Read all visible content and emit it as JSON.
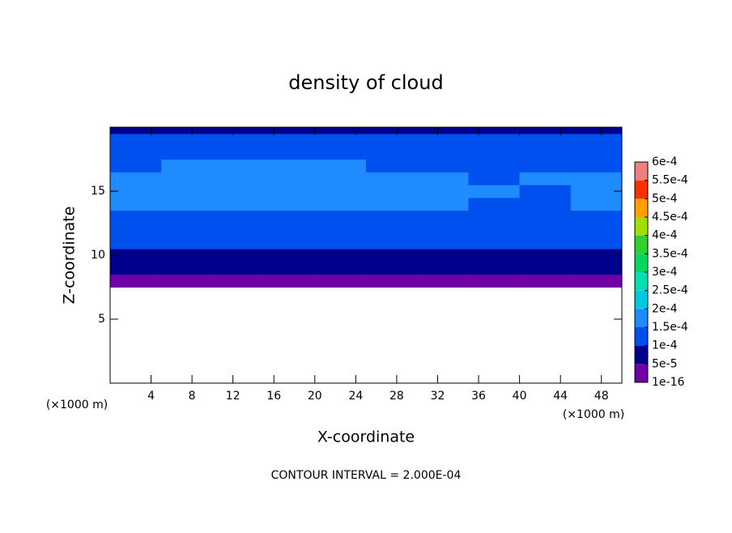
{
  "chart_data": {
    "type": "contour",
    "title": "density of cloud",
    "x_label": "X-coordinate",
    "y_label": "Z-coordinate",
    "x_unit_left": "(×1000 m)",
    "x_unit_right": "(×1000 m)",
    "footer": "CONTOUR INTERVAL = 2.000E-04",
    "xlim": [
      0,
      50
    ],
    "ylim": [
      0,
      20
    ],
    "xticks": [
      4,
      8,
      12,
      16,
      20,
      24,
      28,
      32,
      36,
      40,
      44,
      48
    ],
    "yticks": [
      5,
      10,
      15
    ],
    "x": [
      2.5,
      7.5,
      12.5,
      17.5,
      22.5,
      27.5,
      32.5,
      37.5,
      42.5,
      47.5
    ],
    "y": [
      8,
      9,
      10,
      11,
      12,
      13,
      14,
      15,
      16,
      17,
      18,
      19,
      20
    ],
    "z": [
      [
        2e-05,
        2e-05,
        2e-05,
        2e-05,
        2e-05,
        2e-05,
        2e-05,
        2e-05,
        2e-05,
        2e-05
      ],
      [
        6e-05,
        6e-05,
        6e-05,
        6e-05,
        6e-05,
        6e-05,
        6e-05,
        6e-05,
        6e-05,
        6e-05
      ],
      [
        9e-05,
        9e-05,
        9e-05,
        9e-05,
        9e-05,
        9e-05,
        9e-05,
        9e-05,
        9e-05,
        9e-05
      ],
      [
        0.00011,
        0.00011,
        0.00011,
        0.00011,
        0.00011,
        0.00011,
        0.00011,
        0.00011,
        0.00011,
        0.00011
      ],
      [
        0.00013,
        0.00013,
        0.00013,
        0.00013,
        0.00013,
        0.00013,
        0.00013,
        0.00013,
        0.00012,
        0.00013
      ],
      [
        0.00014,
        0.00014,
        0.00014,
        0.00014,
        0.00014,
        0.00014,
        0.00014,
        0.00013,
        0.00012,
        0.00014
      ],
      [
        0.00015,
        0.00016,
        0.00016,
        0.00016,
        0.00016,
        0.00016,
        0.00016,
        0.00014,
        0.00013,
        0.00015
      ],
      [
        0.00016,
        0.00016,
        0.00016,
        0.00016,
        0.00016,
        0.00016,
        0.00016,
        0.00015,
        0.00013,
        0.00016
      ],
      [
        0.00015,
        0.00016,
        0.00016,
        0.00016,
        0.00016,
        0.00016,
        0.00015,
        0.00012,
        0.00015,
        0.00015
      ],
      [
        0.00014,
        0.00015,
        0.00015,
        0.00015,
        0.00015,
        0.00014,
        0.00013,
        0.00012,
        0.00014,
        0.00014
      ],
      [
        0.00012,
        0.00012,
        0.00012,
        0.00012,
        0.00012,
        0.00012,
        0.00012,
        0.00012,
        0.00012,
        0.00012
      ],
      [
        0.00011,
        0.00011,
        0.00011,
        0.00011,
        0.00011,
        0.00011,
        0.00011,
        0.00011,
        0.00011,
        0.00011
      ],
      [
        9e-05,
        9e-05,
        9e-05,
        9e-05,
        9e-05,
        9e-05,
        9e-05,
        9e-05,
        9e-05,
        9e-05
      ]
    ],
    "colorbar": {
      "ticks": [
        {
          "value": 1e-16,
          "label": "1e-16"
        },
        {
          "value": 5e-05,
          "label": "5e-5"
        },
        {
          "value": 0.0001,
          "label": "1e-4"
        },
        {
          "value": 0.00015,
          "label": "1.5e-4"
        },
        {
          "value": 0.0002,
          "label": "2e-4"
        },
        {
          "value": 0.00025,
          "label": "2.5e-4"
        },
        {
          "value": 0.0003,
          "label": "3e-4"
        },
        {
          "value": 0.00035,
          "label": "3.5e-4"
        },
        {
          "value": 0.0004,
          "label": "4e-4"
        },
        {
          "value": 0.00045,
          "label": "4.5e-4"
        },
        {
          "value": 0.0005,
          "label": "5e-4"
        },
        {
          "value": 0.00055,
          "label": "5.5e-4"
        },
        {
          "value": 0.0006,
          "label": "6e-4"
        }
      ],
      "colors": [
        "#7000a8",
        "#00008c",
        "#0050f0",
        "#1e8cff",
        "#00c8e0",
        "#00e0b0",
        "#00d860",
        "#30d030",
        "#a0e000",
        "#ffa000",
        "#ff3000",
        "#f08080"
      ]
    }
  }
}
